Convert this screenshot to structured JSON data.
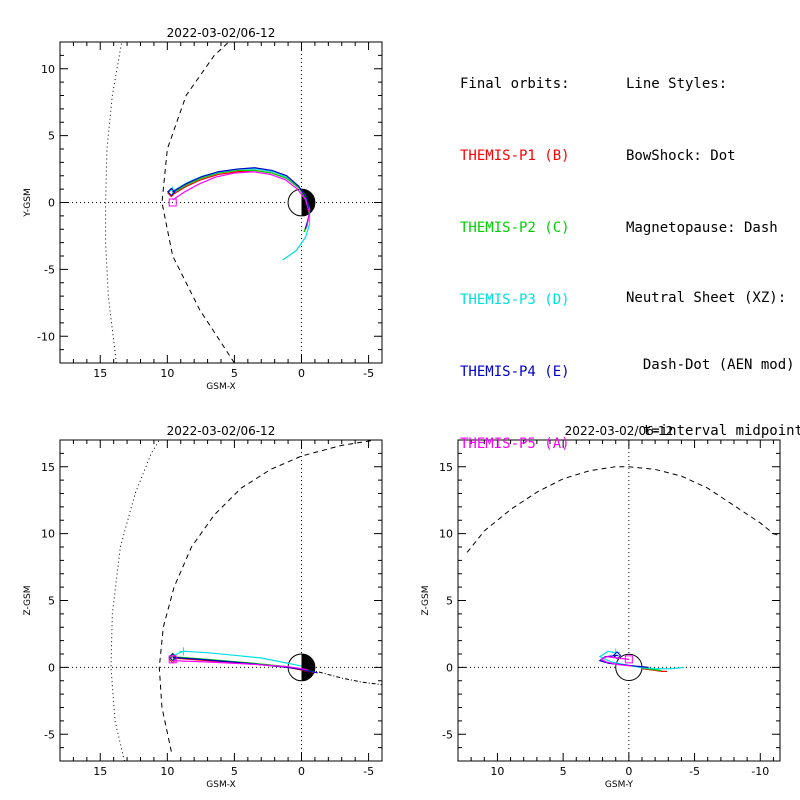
{
  "legend": {
    "orbits_heading": "Final orbits:",
    "probes": [
      {
        "label": "THEMIS-P1 (B)",
        "color": "#ff0000"
      },
      {
        "label": "THEMIS-P2 (C)",
        "color": "#00d000"
      },
      {
        "label": "THEMIS-P3 (D)",
        "color": "#00e0e0"
      },
      {
        "label": "THEMIS-P4 (E)",
        "color": "#0000c8"
      },
      {
        "label": "THEMIS-P5 (A)",
        "color": "#ff00ff"
      }
    ],
    "styles_heading": "Line Styles:",
    "styles": [
      "BowShock: Dot",
      "Magnetopause: Dash",
      "Neutral Sheet (XZ):",
      "  Dash-Dot (AEN mod)",
      "  t=interval midpoint"
    ]
  },
  "chart_data": [
    {
      "type": "line",
      "title": "2022-03-02/06-12",
      "xlabel": "GSM-X",
      "ylabel": "Y-GSM",
      "xlim": [
        18,
        -6
      ],
      "ylim": [
        -12,
        12
      ],
      "xticks": [
        15,
        10,
        5,
        0,
        -5
      ],
      "yticks": [
        -10,
        -5,
        0,
        5,
        10
      ],
      "bow_shock": [
        [
          13.8,
          -12
        ],
        [
          14.4,
          -7
        ],
        [
          14.6,
          -3
        ],
        [
          14.6,
          0
        ],
        [
          14.5,
          4
        ],
        [
          14.1,
          8
        ],
        [
          13.4,
          12
        ]
      ],
      "magnetopause": [
        [
          5,
          -12
        ],
        [
          7.6,
          -8
        ],
        [
          9.6,
          -4
        ],
        [
          10.4,
          0
        ],
        [
          10.0,
          4
        ],
        [
          8.6,
          8
        ],
        [
          6.5,
          11
        ],
        [
          5.1,
          12.3
        ]
      ],
      "series": [
        {
          "probe": 0,
          "x": [
            9.6,
            8.6,
            7.5,
            6.2,
            4.8,
            3.5,
            2.2,
            1.1,
            0.2,
            -0.4,
            -0.6,
            -0.2
          ],
          "y": [
            0.6,
            1.2,
            1.7,
            2.1,
            2.3,
            2.4,
            2.2,
            1.8,
            1.1,
            0.2,
            -1.0,
            -2.2
          ],
          "marker": [
            9.7,
            0.7
          ]
        },
        {
          "probe": 1,
          "x": [
            9.6,
            8.6,
            7.5,
            6.2,
            4.8,
            3.5,
            2.2,
            1.1,
            0.2,
            -0.4,
            -0.6,
            -0.2
          ],
          "y": [
            0.7,
            1.3,
            1.8,
            2.2,
            2.4,
            2.4,
            2.2,
            1.8,
            1.1,
            0.2,
            -1.0,
            -2.2
          ],
          "marker": [
            9.7,
            0.8
          ]
        },
        {
          "probe": 2,
          "x": [
            9.5,
            8.5,
            7.3,
            6.0,
            4.6,
            3.3,
            2.1,
            1.1,
            0.3,
            -0.3,
            -0.6,
            -0.6,
            -0.3,
            0.4,
            1.4
          ],
          "y": [
            0.9,
            1.5,
            2.0,
            2.3,
            2.5,
            2.5,
            2.3,
            1.9,
            1.3,
            0.5,
            -0.5,
            -1.6,
            -2.6,
            -3.6,
            -4.3
          ],
          "marker": [
            9.6,
            0.9
          ]
        },
        {
          "probe": 3,
          "x": [
            9.6,
            8.6,
            7.5,
            6.2,
            4.8,
            3.5,
            2.2,
            1.1,
            0.2,
            -0.4,
            -0.6,
            -0.3
          ],
          "y": [
            0.8,
            1.4,
            1.9,
            2.3,
            2.5,
            2.6,
            2.4,
            2.0,
            1.2,
            0.3,
            -0.8,
            -2.0
          ],
          "marker": [
            9.7,
            0.8
          ]
        },
        {
          "probe": 4,
          "x": [
            9.6,
            8.7,
            7.6,
            6.4,
            5.0,
            3.6,
            2.3,
            1.2,
            0.3,
            -0.3,
            -0.6,
            -0.4
          ],
          "y": [
            0.2,
            0.8,
            1.4,
            1.9,
            2.2,
            2.3,
            2.1,
            1.7,
            1.0,
            0.2,
            -0.8,
            -1.8
          ],
          "marker": [
            9.6,
            0.0
          ]
        }
      ]
    },
    {
      "type": "line",
      "title": "2022-03-02/06-12",
      "xlabel": "GSM-X",
      "ylabel": "Z-GSM",
      "xlim": [
        18,
        -6
      ],
      "ylim": [
        -7,
        17
      ],
      "xticks": [
        15,
        10,
        5,
        0,
        -5
      ],
      "yticks": [
        -5,
        0,
        5,
        10,
        15
      ],
      "bow_shock": [
        [
          13.2,
          -7
        ],
        [
          13.9,
          -4
        ],
        [
          14.2,
          0
        ],
        [
          14.1,
          4
        ],
        [
          13.5,
          9
        ],
        [
          12.4,
          13
        ],
        [
          11.2,
          16
        ],
        [
          10.6,
          17
        ]
      ],
      "magnetopause": [
        [
          9.7,
          -6.3
        ],
        [
          10.4,
          -3
        ],
        [
          10.6,
          0
        ],
        [
          10.3,
          3
        ],
        [
          9.5,
          6
        ],
        [
          8.2,
          9
        ],
        [
          6.5,
          11.4
        ],
        [
          4.5,
          13.4
        ],
        [
          2.3,
          14.8
        ],
        [
          0,
          15.8
        ],
        [
          -3,
          16.6
        ],
        [
          -5.5,
          17
        ]
      ],
      "neutral_sheet": [
        [
          0,
          0
        ],
        [
          -1.5,
          -0.4
        ],
        [
          -3,
          -0.8
        ],
        [
          -4.5,
          -1.1
        ],
        [
          -6,
          -1.3
        ]
      ],
      "series": [
        {
          "probe": 0,
          "x": [
            9.6,
            7,
            4,
            1,
            0,
            -0.5,
            -1
          ],
          "y": [
            0.7,
            0.5,
            0.3,
            0.0,
            -0.2,
            -0.3,
            -0.4
          ],
          "marker": [
            9.6,
            0.6
          ]
        },
        {
          "probe": 1,
          "x": [
            9.6,
            7,
            4,
            1,
            0,
            -0.5,
            -1
          ],
          "y": [
            0.8,
            0.6,
            0.35,
            0.05,
            -0.15,
            -0.25,
            -0.35
          ],
          "marker": [
            9.6,
            0.8
          ]
        },
        {
          "probe": 2,
          "x": [
            9.5,
            8.8,
            7,
            5,
            3,
            1.5,
            0.5,
            0
          ],
          "y": [
            0.9,
            1.2,
            1.1,
            0.9,
            0.7,
            0.4,
            0.2,
            0.1
          ],
          "marker": [
            8.8,
            1.2
          ]
        },
        {
          "probe": 3,
          "x": [
            9.6,
            7,
            4,
            1,
            0,
            -0.6,
            -1.2
          ],
          "y": [
            0.75,
            0.55,
            0.3,
            0.0,
            -0.15,
            -0.3,
            -0.4
          ],
          "marker": [
            9.6,
            0.75
          ]
        },
        {
          "probe": 4,
          "x": [
            9.6,
            7,
            4,
            1,
            0,
            -0.5
          ],
          "y": [
            0.5,
            0.4,
            0.25,
            0.05,
            -0.1,
            -0.2
          ],
          "marker": [
            9.6,
            0.6
          ]
        }
      ]
    },
    {
      "type": "line",
      "title": "2022-03-02/06-12",
      "xlabel": "GSM-Y",
      "ylabel": "Z-GSM",
      "xlim": [
        13,
        -11.5
      ],
      "ylim": [
        -7,
        17
      ],
      "xticks": [
        10,
        5,
        0,
        -5,
        -10
      ],
      "yticks": [
        -5,
        0,
        5,
        10,
        15
      ],
      "magnetopause": [
        [
          12.3,
          8.6
        ],
        [
          11,
          10.2
        ],
        [
          9,
          11.8
        ],
        [
          7,
          13.1
        ],
        [
          5,
          14.1
        ],
        [
          3,
          14.7
        ],
        [
          1,
          15
        ],
        [
          0,
          15
        ],
        [
          -2,
          14.8
        ],
        [
          -4,
          14.3
        ],
        [
          -6,
          13.4
        ],
        [
          -8,
          12.1
        ],
        [
          -10,
          10.8
        ],
        [
          -11,
          10.0
        ],
        [
          -11.3,
          9.9
        ]
      ],
      "series": [
        {
          "probe": 0,
          "x": [
            -1.0,
            -1.8,
            -2.5,
            -2.9
          ],
          "y": [
            -0.1,
            -0.2,
            -0.3,
            -0.3
          ],
          "marker": null
        },
        {
          "probe": 1,
          "x": [
            -1.0,
            -1.8,
            -2.5
          ],
          "y": [
            -0.05,
            -0.15,
            -0.25
          ],
          "marker": null
        },
        {
          "probe": 2,
          "x": [
            1.0,
            1.6,
            2.2,
            1.3,
            0.3,
            -0.8,
            -2.0,
            -3.2,
            -4.2
          ],
          "y": [
            1.1,
            1.2,
            0.8,
            0.4,
            0.2,
            0.0,
            -0.1,
            -0.1,
            0.0
          ],
          "marker": [
            1.0,
            1.1
          ]
        },
        {
          "probe": 3,
          "x": [
            0.8,
            1.8,
            2.2,
            1.5,
            0.5,
            -0.5,
            -1.5
          ],
          "y": [
            0.9,
            0.8,
            0.5,
            0.3,
            0.2,
            0.1,
            0.0
          ],
          "marker": [
            0.9,
            0.9
          ]
        },
        {
          "probe": 4,
          "x": [
            0.0,
            0.9,
            1.7,
            2.1,
            1.7,
            0.8,
            -0.2
          ],
          "y": [
            0.6,
            0.7,
            0.8,
            0.6,
            0.4,
            0.2,
            0.1
          ],
          "marker": [
            0.0,
            0.6
          ]
        }
      ]
    }
  ]
}
